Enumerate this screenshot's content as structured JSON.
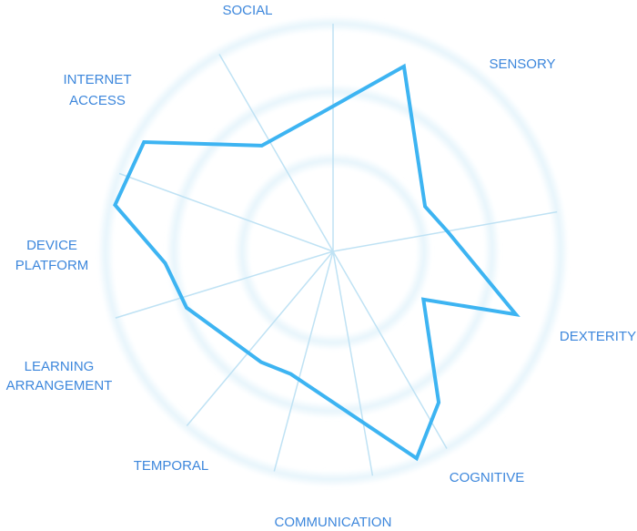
{
  "chart_data": {
    "type": "radar",
    "axes": [
      {
        "label": [
          "SOCIAL"
        ]
      },
      {
        "label": [
          "SENSORY"
        ]
      },
      {
        "label": [
          "DEXTERITY"
        ]
      },
      {
        "label": [
          "COGNITIVE"
        ]
      },
      {
        "label": [
          "COMMUNICATION"
        ]
      },
      {
        "label": [
          "TEMPORAL"
        ]
      },
      {
        "label": [
          "LEARNING",
          "ARRANGEMENT"
        ]
      },
      {
        "label": [
          "DEVICE",
          "PLATFORM"
        ]
      },
      {
        "label": [
          "INTERNET",
          "ACCESS"
        ]
      }
    ],
    "vertices": [
      {
        "angle": 355,
        "value": 0.61
      },
      {
        "angle": 21,
        "value": 0.87
      },
      {
        "angle": 64,
        "value": 0.45
      },
      {
        "angle": 80,
        "value": 0.51
      },
      {
        "angle": 109,
        "value": 0.85
      },
      {
        "angle": 118,
        "value": 0.45
      },
      {
        "angle": 145,
        "value": 0.81
      },
      {
        "angle": 158,
        "value": 0.98
      },
      {
        "angle": 199,
        "value": 0.57
      },
      {
        "angle": 213,
        "value": 0.58
      },
      {
        "angle": 249,
        "value": 0.69
      },
      {
        "angle": 266,
        "value": 0.74
      },
      {
        "angle": 282,
        "value": 0.98
      },
      {
        "angle": 300,
        "value": 0.96
      },
      {
        "angle": 326,
        "value": 0.56
      }
    ],
    "rings": 3,
    "colors": {
      "line": "#3db4f2",
      "spoke": "#bfe2f4",
      "ring": "#eaf6fc",
      "label": "#3d87dc"
    }
  }
}
